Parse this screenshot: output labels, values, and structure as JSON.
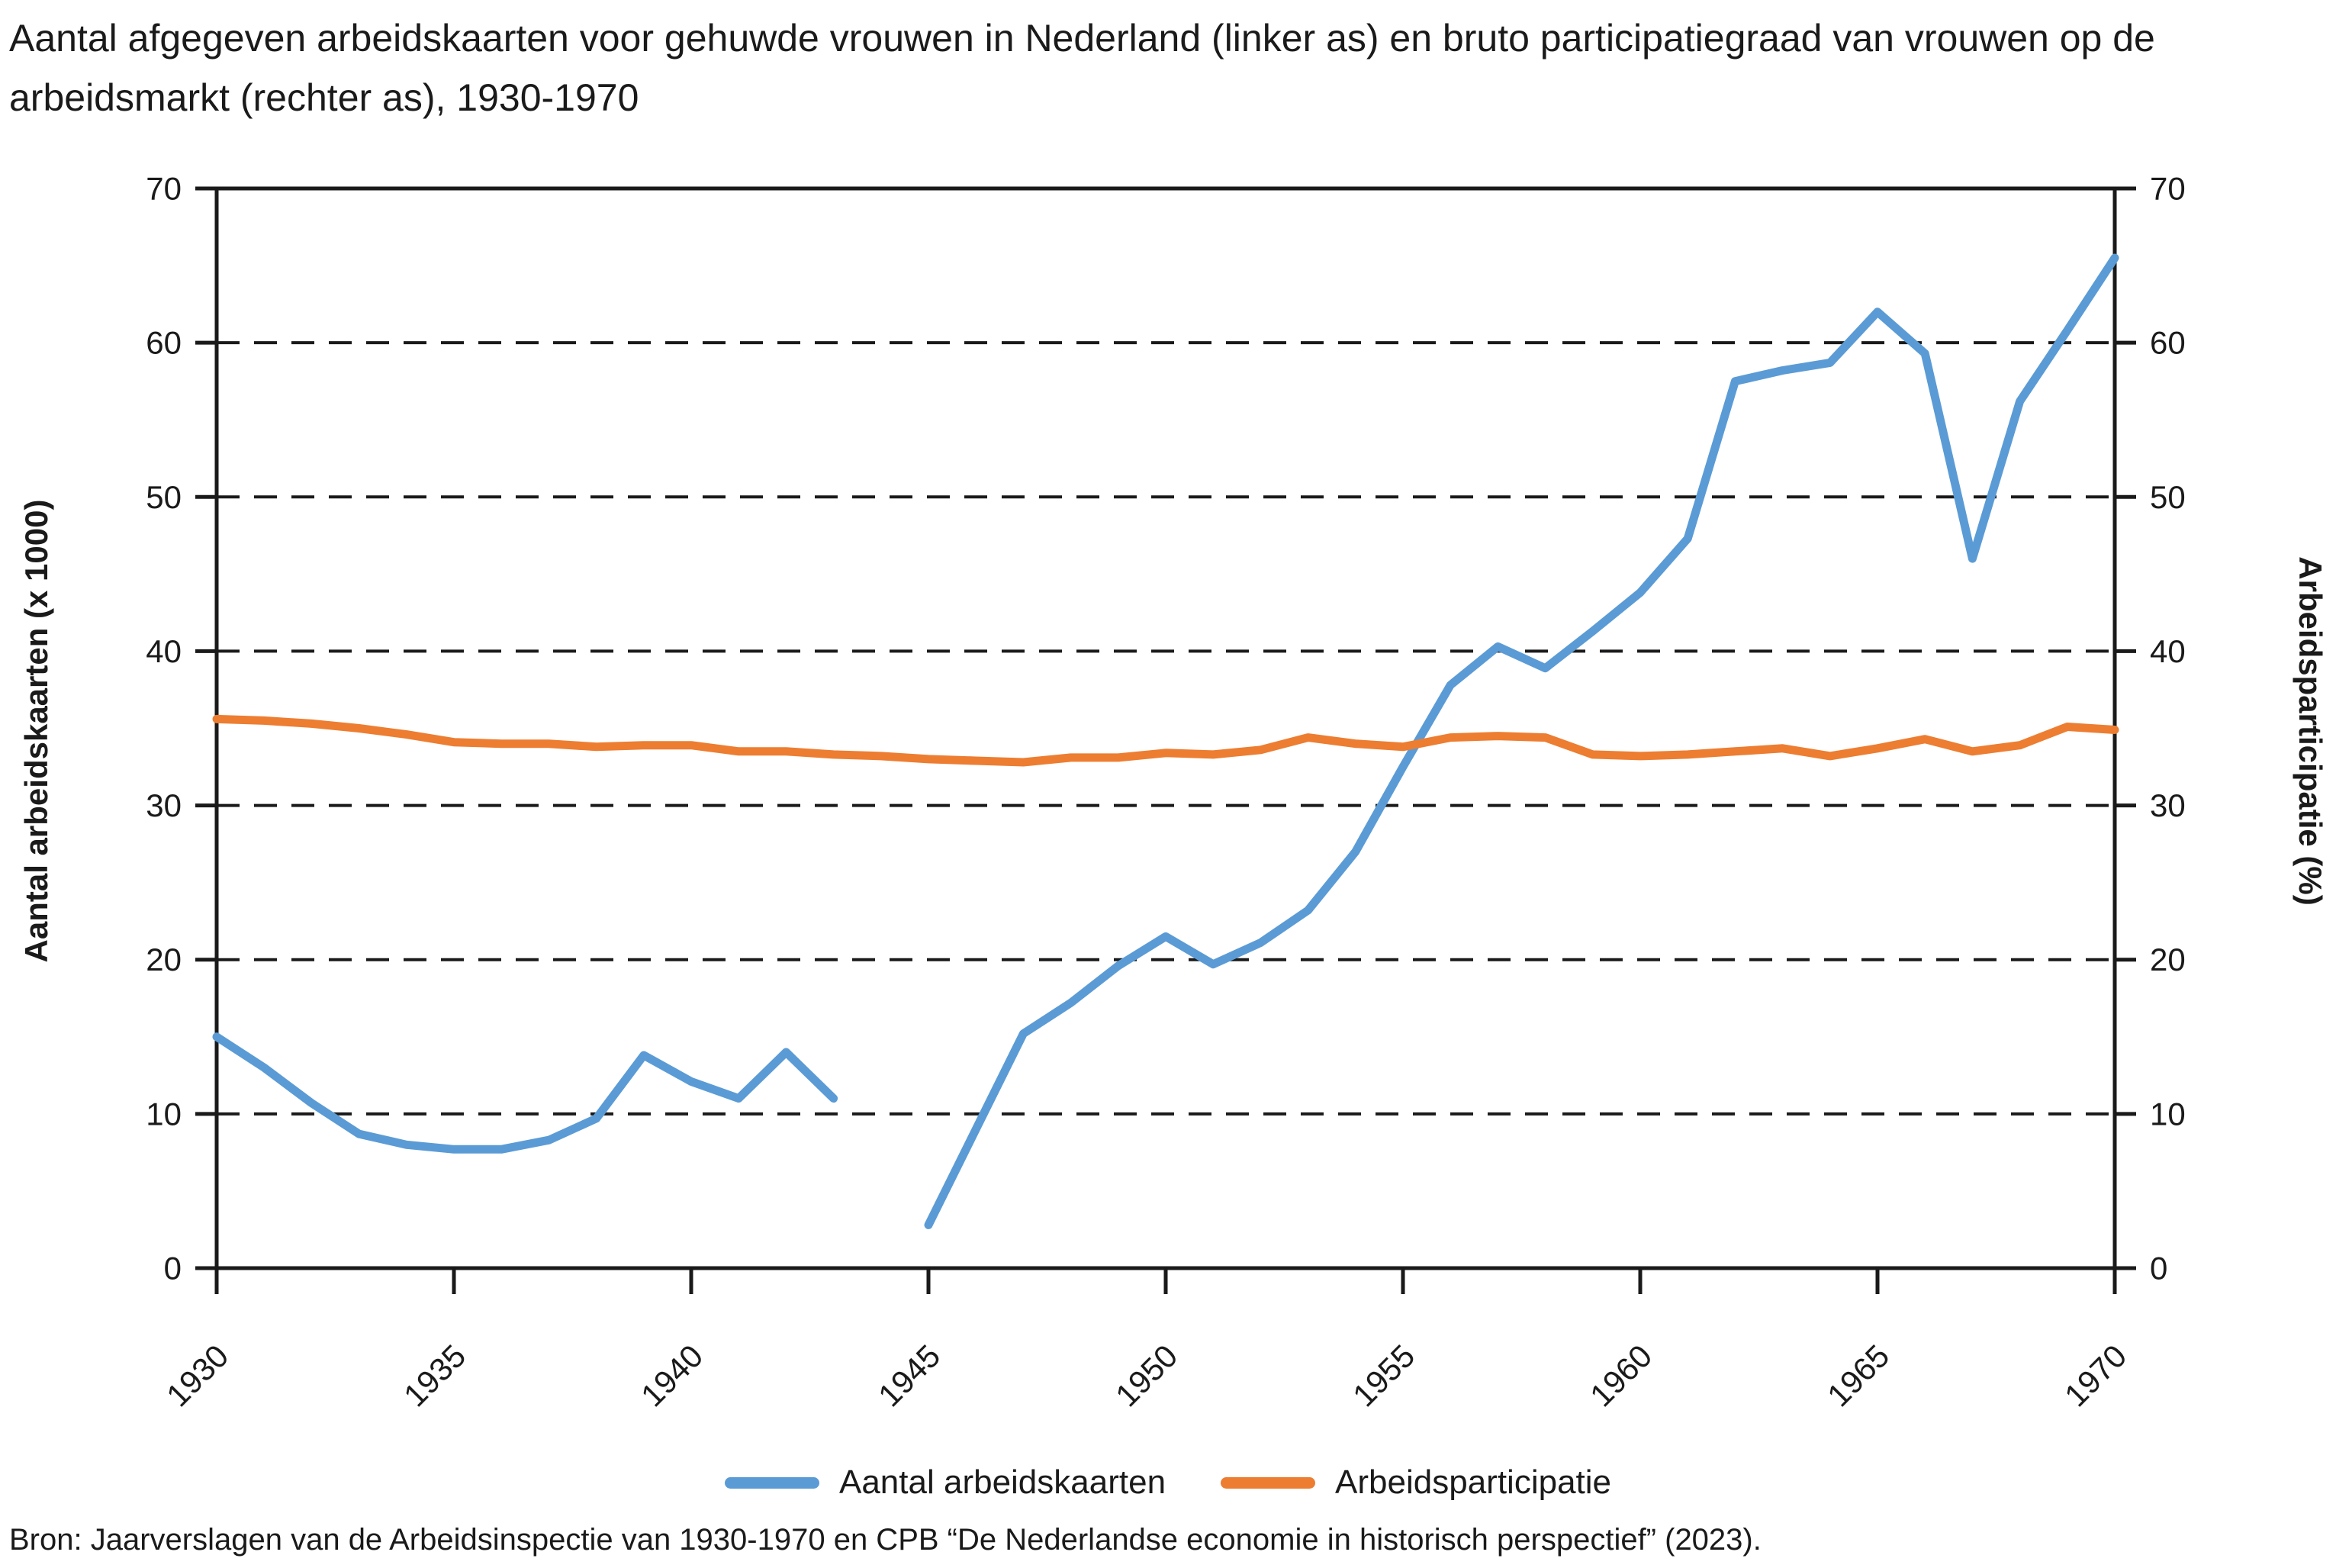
{
  "title": "Aantal afgegeven arbeidskaarten voor gehuwde vrouwen in Nederland (linker as) en bruto participatiegraad van vrouwen op de arbeidsmarkt (rechter as), 1930-1970",
  "source": "Bron: Jaarverslagen van de Arbeidsinspectie van 1930-1970 en CPB “De Nederlandse economie in historisch perspectief” (2023).",
  "legend": {
    "series1": "Aantal arbeidskaarten",
    "series2": "Arbeidsparticipatie"
  },
  "colors": {
    "blue": "#5B9BD5",
    "orange": "#ED7D31",
    "axis": "#1a1a1a",
    "background": "#ffffff"
  },
  "chart_data": {
    "type": "line",
    "title": "Aantal afgegeven arbeidskaarten voor gehuwde vrouwen in Nederland (linker as) en bruto participatiegraad van vrouwen op de arbeidsmarkt (rechter as), 1930-1970",
    "x": [
      1930,
      1931,
      1932,
      1933,
      1934,
      1935,
      1936,
      1937,
      1938,
      1939,
      1940,
      1941,
      1942,
      1943,
      1944,
      1945,
      1946,
      1947,
      1948,
      1949,
      1950,
      1951,
      1952,
      1953,
      1954,
      1955,
      1956,
      1957,
      1958,
      1959,
      1960,
      1961,
      1962,
      1963,
      1964,
      1965,
      1966,
      1967,
      1968,
      1969,
      1970
    ],
    "x_tick_labels": [
      "1930",
      "1935",
      "1940",
      "1945",
      "1950",
      "1955",
      "1960",
      "1965",
      "1970"
    ],
    "x_tick_years": [
      1930,
      1935,
      1940,
      1945,
      1950,
      1955,
      1960,
      1965,
      1970
    ],
    "grid": "dashed-horizontal",
    "legend_position": "bottom-center",
    "left_axis": {
      "label": "Aantal arbeidskaarten (x 1000)",
      "min": 0,
      "max": 70,
      "ticks": [
        0,
        10,
        20,
        30,
        40,
        50,
        60,
        70
      ]
    },
    "right_axis": {
      "label": "Arbeidsparticipatie (%)",
      "min": 0,
      "max": 70,
      "ticks": [
        0,
        10,
        20,
        30,
        40,
        50,
        60,
        70
      ]
    },
    "series": [
      {
        "name": "Aantal arbeidskaarten",
        "axis": "left",
        "color": "#5B9BD5",
        "values": [
          15.0,
          13.0,
          10.7,
          8.7,
          8.0,
          7.7,
          7.7,
          8.3,
          9.7,
          13.8,
          12.1,
          11.0,
          14.0,
          11.0,
          null,
          2.8,
          9.0,
          15.2,
          17.2,
          19.6,
          21.5,
          19.7,
          21.1,
          23.2,
          27.0,
          32.5,
          37.8,
          40.3,
          38.9,
          41.3,
          43.8,
          47.3,
          57.5,
          58.2,
          58.7,
          62.0,
          59.3,
          46.0,
          56.2,
          60.8,
          65.5
        ]
      },
      {
        "name": "Arbeidsparticipatie",
        "axis": "right",
        "color": "#ED7D31",
        "values": [
          35.6,
          35.5,
          35.3,
          35.0,
          34.6,
          34.1,
          34.0,
          34.0,
          33.8,
          33.9,
          33.9,
          33.5,
          33.5,
          33.3,
          33.2,
          33.0,
          32.9,
          32.8,
          33.1,
          33.1,
          33.4,
          33.3,
          33.6,
          34.4,
          34.0,
          33.8,
          34.4,
          34.5,
          34.4,
          33.3,
          33.2,
          33.3,
          33.5,
          33.7,
          33.2,
          33.7,
          34.3,
          33.5,
          33.9,
          35.1,
          34.9
        ]
      }
    ]
  }
}
